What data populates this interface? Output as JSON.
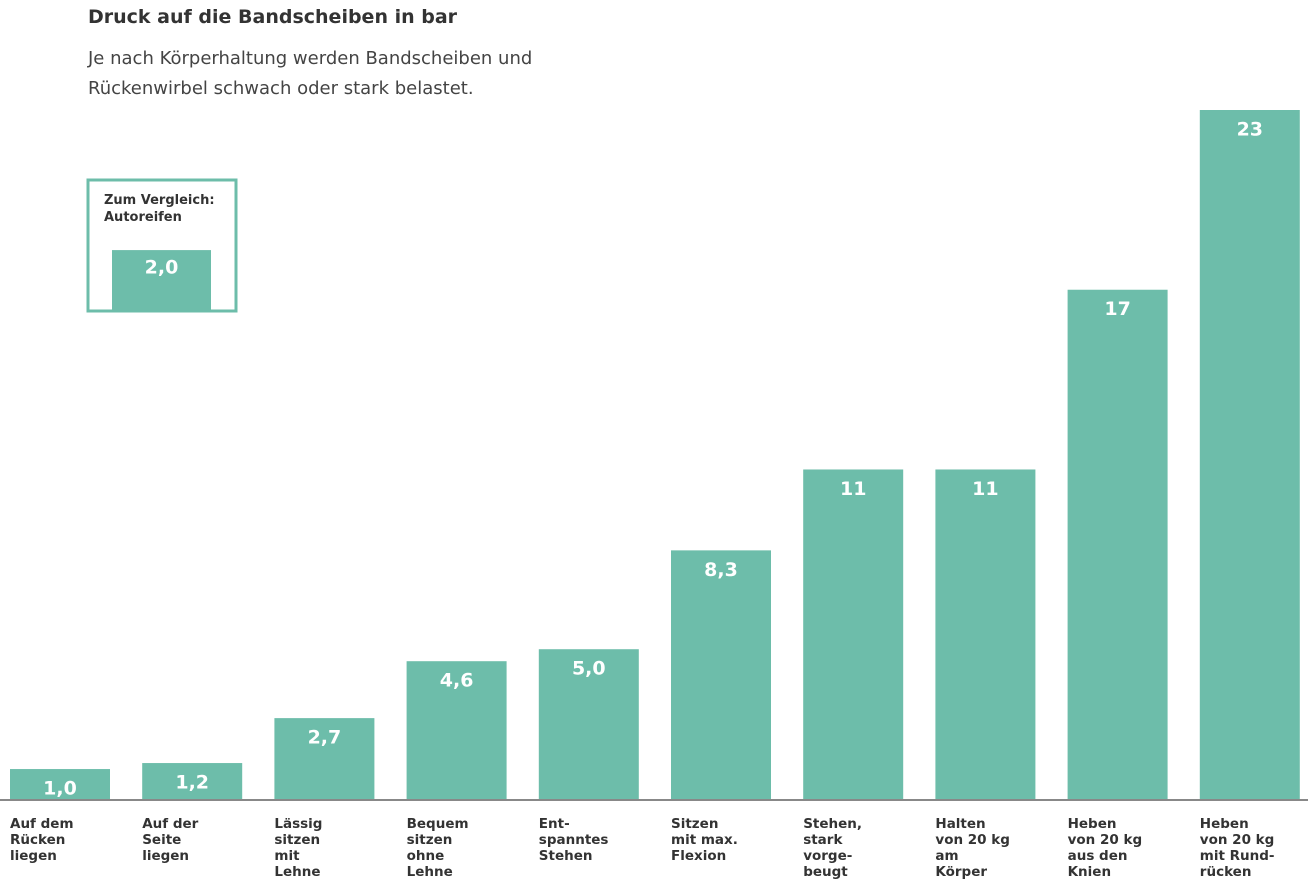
{
  "chart_data": {
    "type": "bar",
    "title": "Druck auf die Bandscheiben in bar",
    "subtitle": "Je nach Körperhaltung werden Bandscheiben und\nRückenwirbel schwach oder stark belastet.",
    "categories": [
      "Auf dem\nRücken\nliegen",
      "Auf der\nSeite\nliegen",
      "Lässig\nsitzen\nmit\nLehne",
      "Bequem\nsitzen\nohne\nLehne",
      "Ent-\nspanntes\nStehen",
      "Sitzen\nmit max.\nFlexion",
      "Stehen,\nstark\nvorge-\nbeugt",
      "Halten\nvon 20 kg\nam\nKörper",
      "Heben\nvon 20 kg\naus den\nKnien",
      "Heben\nvon 20 kg\nmit Rund-\nrücken"
    ],
    "values": [
      1.0,
      1.2,
      2.7,
      4.6,
      5.0,
      8.3,
      11,
      11,
      17,
      23
    ],
    "value_labels": [
      "1,0",
      "1,2",
      "2,7",
      "4,6",
      "5,0",
      "8,3",
      "11",
      "11",
      "17",
      "23"
    ],
    "color": "#6dbdaa",
    "ylim": [
      0,
      23
    ],
    "comparison": {
      "label": "Zum Vergleich:\nAutoreifen",
      "value": 2.0,
      "value_label": "2,0"
    }
  }
}
